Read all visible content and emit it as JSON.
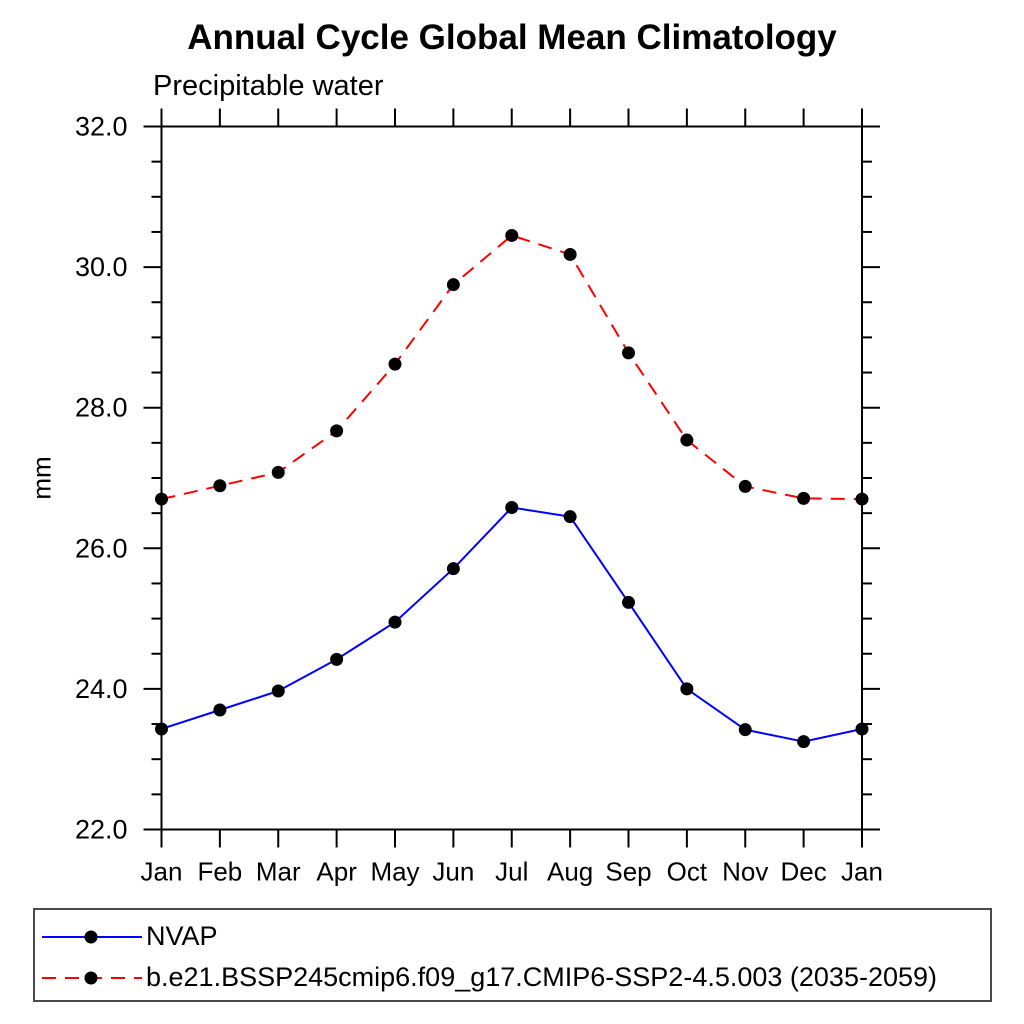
{
  "chart_data": {
    "type": "line",
    "title": "Annual Cycle Global Mean Climatology",
    "subtitle": "Precipitable water",
    "ylabel": "mm",
    "x_tick_labels": [
      "Jan",
      "Feb",
      "Mar",
      "Apr",
      "May",
      "Jun",
      "Jul",
      "Aug",
      "Sep",
      "Oct",
      "Nov",
      "Dec",
      "Jan"
    ],
    "ylim": [
      22.0,
      32.0
    ],
    "y_major_step": 2.0,
    "y_minor_step": 0.5,
    "y_tick_labels": [
      "22.0",
      "24.0",
      "26.0",
      "28.0",
      "30.0",
      "32.0"
    ],
    "grid": false,
    "ticks": "outward on all four sides",
    "marker_color": "#000000",
    "axis_color": "#000000",
    "series": [
      {
        "name": "NVAP",
        "color": "#0000ff",
        "line_style": "solid",
        "marker": "filled-circle",
        "values": [
          23.43,
          23.7,
          23.97,
          24.42,
          24.95,
          25.71,
          26.58,
          26.45,
          25.23,
          24.0,
          23.42,
          23.25,
          23.43
        ]
      },
      {
        "name": "b.e21.BSSP245cmip6.f09_g17.CMIP6-SSP2-4.5.003 (2035-2059)",
        "color": "#ff0000",
        "line_style": "dashed",
        "marker": "filled-circle",
        "values": [
          26.7,
          26.89,
          27.08,
          27.67,
          28.62,
          29.75,
          30.45,
          30.18,
          28.78,
          27.54,
          26.88,
          26.71,
          26.7
        ]
      }
    ],
    "legend": {
      "position": "bottom-left",
      "items": [
        "NVAP",
        "b.e21.BSSP245cmip6.f09_g17.CMIP6-SSP2-4.5.003 (2035-2059)"
      ]
    }
  }
}
